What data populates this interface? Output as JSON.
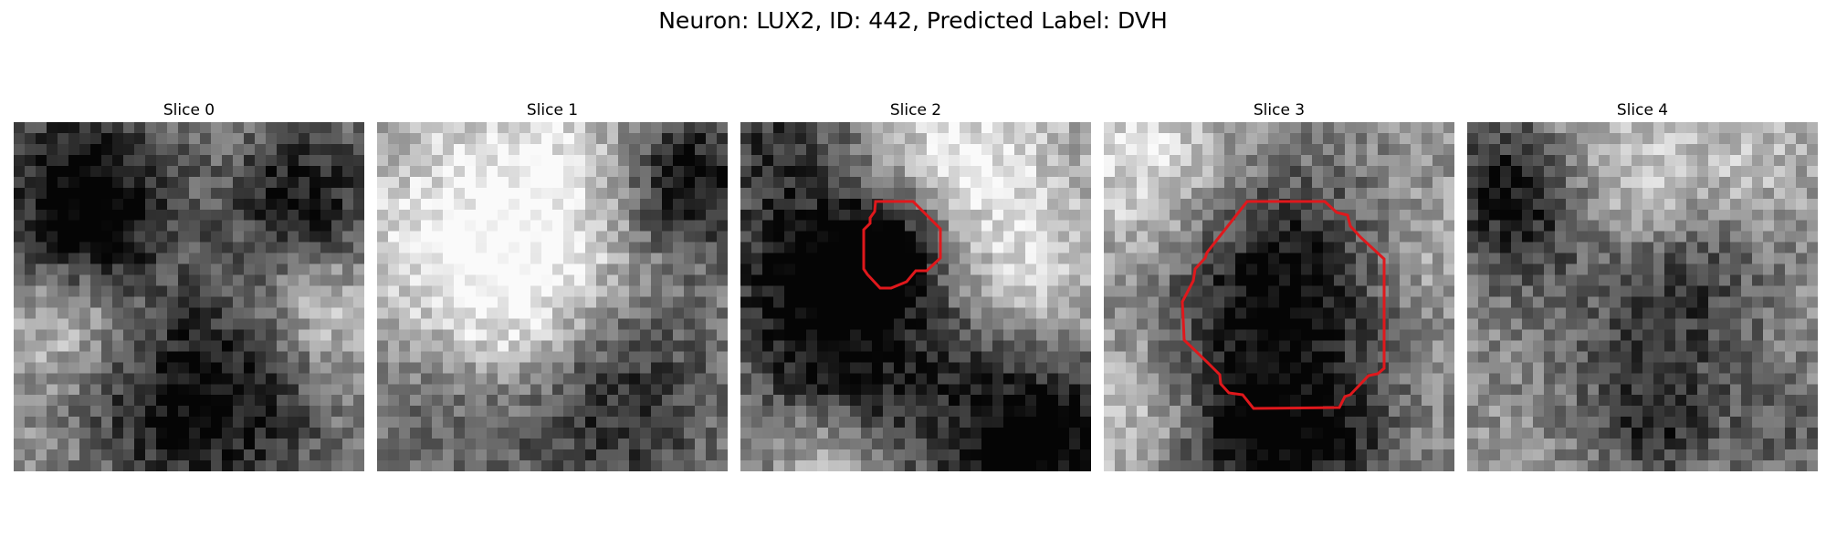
{
  "figure": {
    "suptitle": "Neuron: LUX2, ID: 442, Predicted Label: DVH"
  },
  "panels": [
    {
      "title": "Slice 0"
    },
    {
      "title": "Slice 1"
    },
    {
      "title": "Slice 2"
    },
    {
      "title": "Slice 3"
    },
    {
      "title": "Slice 4"
    }
  ],
  "style": {
    "contour_color": "#e0181c",
    "colormap": "gray"
  }
}
